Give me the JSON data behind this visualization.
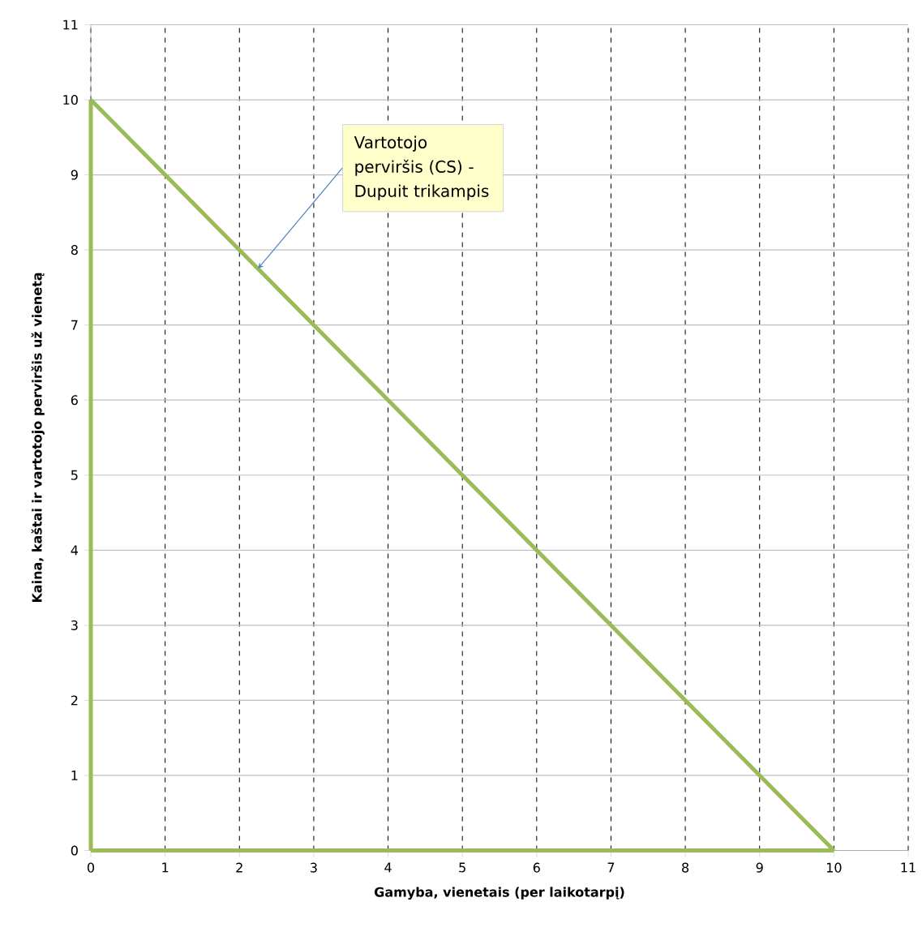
{
  "chart_data": {
    "type": "line",
    "xlabel": "Gamyba, vienetais (per laikotarpį)",
    "ylabel": "Kaina, kaštai ir vartotojo perviršis už vienetą",
    "x": [
      0,
      10
    ],
    "series": [
      {
        "color": "#9bbb59",
        "values": [
          10,
          0
        ]
      },
      {
        "color": "#9bbb59",
        "values": [
          0,
          0
        ]
      },
      {
        "color": "#9bbb59",
        "x": [
          0,
          0
        ],
        "values": [
          0,
          10
        ]
      }
    ],
    "xlim": [
      0,
      11
    ],
    "ylim": [
      0,
      11
    ],
    "xticks": [
      0,
      1,
      2,
      3,
      4,
      5,
      6,
      7,
      8,
      9,
      10,
      11
    ],
    "yticks": [
      0,
      1,
      2,
      3,
      4,
      5,
      6,
      7,
      8,
      9,
      10,
      11
    ],
    "grid": true,
    "marker": "none",
    "line_style": "solid",
    "annotations": [
      {
        "text": "Vartotojo perviršis (CS) - Dupuit trikampis",
        "x": 2.25,
        "y": 7.75
      }
    ]
  }
}
